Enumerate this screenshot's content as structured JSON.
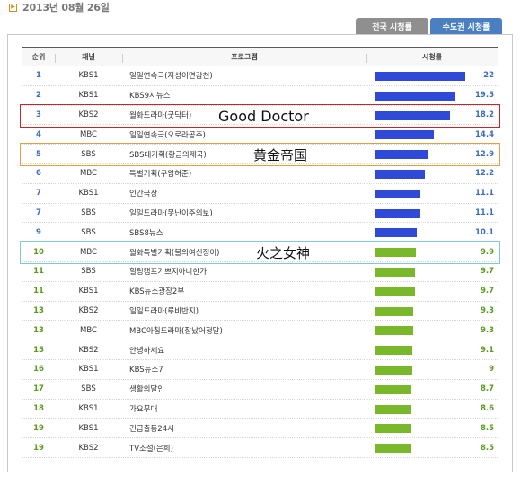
{
  "date": "2013년 08월 26일",
  "tabs": {
    "national": "전국 시청률",
    "capital": "수도권 시청률"
  },
  "headers": {
    "rank": "순위",
    "channel": "채널",
    "program": "프로그램",
    "rating": "시청률"
  },
  "colors": {
    "blue_bar": "#2e4ad6",
    "green_bar": "#78b82a",
    "blue_text": "#3a6cc0",
    "green_text": "#5a9a1e"
  },
  "rating_max": 22,
  "rows": [
    {
      "rank": "1",
      "channel": "KBS1",
      "program": "일일연속극(지성이면감천)",
      "rating": 22,
      "rating_text": "22",
      "group": "blue"
    },
    {
      "rank": "2",
      "channel": "KBS1",
      "program": "KBS9시뉴스",
      "rating": 19.5,
      "rating_text": "19.5",
      "group": "blue"
    },
    {
      "rank": "3",
      "channel": "KBS2",
      "program": "월화드라마(굿닥터)",
      "rating": 18.2,
      "rating_text": "18.2",
      "group": "blue"
    },
    {
      "rank": "4",
      "channel": "MBC",
      "program": "일일연속극(오로라공주)",
      "rating": 14.4,
      "rating_text": "14.4",
      "group": "blue"
    },
    {
      "rank": "5",
      "channel": "SBS",
      "program": "SBS대기획(황금의제국)",
      "rating": 12.9,
      "rating_text": "12.9",
      "group": "blue"
    },
    {
      "rank": "6",
      "channel": "MBC",
      "program": "특별기획(구암허준)",
      "rating": 12.2,
      "rating_text": "12.2",
      "group": "blue"
    },
    {
      "rank": "7",
      "channel": "KBS1",
      "program": "인간극장",
      "rating": 11.1,
      "rating_text": "11.1",
      "group": "blue"
    },
    {
      "rank": "7",
      "channel": "SBS",
      "program": "일일드라마(못난이주의보)",
      "rating": 11.1,
      "rating_text": "11.1",
      "group": "blue"
    },
    {
      "rank": "9",
      "channel": "SBS",
      "program": "SBS8뉴스",
      "rating": 10.1,
      "rating_text": "10.1",
      "group": "blue"
    },
    {
      "rank": "10",
      "channel": "MBC",
      "program": "월화특별기획(불의여신정이)",
      "rating": 9.9,
      "rating_text": "9.9",
      "group": "green"
    },
    {
      "rank": "11",
      "channel": "SBS",
      "program": "힐링캠프기쁘지아니한가",
      "rating": 9.7,
      "rating_text": "9.7",
      "group": "green"
    },
    {
      "rank": "11",
      "channel": "KBS1",
      "program": "KBS뉴스광장2부",
      "rating": 9.7,
      "rating_text": "9.7",
      "group": "green"
    },
    {
      "rank": "13",
      "channel": "KBS2",
      "program": "일일드라마(루비반지)",
      "rating": 9.3,
      "rating_text": "9.3",
      "group": "green"
    },
    {
      "rank": "13",
      "channel": "MBC",
      "program": "MBC아침드라마(잘났어정말)",
      "rating": 9.3,
      "rating_text": "9.3",
      "group": "green"
    },
    {
      "rank": "15",
      "channel": "KBS2",
      "program": "안녕하세요",
      "rating": 9.1,
      "rating_text": "9.1",
      "group": "green"
    },
    {
      "rank": "16",
      "channel": "KBS1",
      "program": "KBS뉴스7",
      "rating": 9,
      "rating_text": "9",
      "group": "green"
    },
    {
      "rank": "17",
      "channel": "SBS",
      "program": "생활의달인",
      "rating": 8.7,
      "rating_text": "8.7",
      "group": "green"
    },
    {
      "rank": "18",
      "channel": "KBS1",
      "program": "가요무대",
      "rating": 8.6,
      "rating_text": "8.6",
      "group": "green"
    },
    {
      "rank": "19",
      "channel": "KBS1",
      "program": "긴급출동24시",
      "rating": 8.5,
      "rating_text": "8.5",
      "group": "green"
    },
    {
      "rank": "19",
      "channel": "KBS2",
      "program": "TV소설(은희)",
      "rating": 8.5,
      "rating_text": "8.5",
      "group": "green"
    }
  ],
  "annotations": [
    {
      "row_index": 2,
      "label": "Good Doctor",
      "box_color": "#c0282a"
    },
    {
      "row_index": 4,
      "label": "黄金帝国",
      "box_color": "#e0a040"
    },
    {
      "row_index": 9,
      "label": "火之女神",
      "box_color": "#7ec8d8"
    }
  ]
}
